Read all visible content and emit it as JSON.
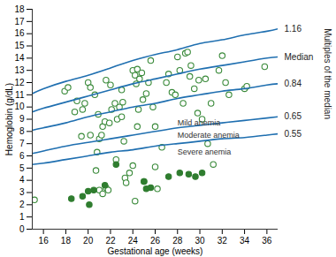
{
  "chart_data": {
    "type": "scatter",
    "x_label": "Gestational age (weeks)",
    "y_label": "Hemoglobin (g/dL)",
    "y2_label": "Multiples of the median",
    "xlim": [
      15,
      37
    ],
    "xticks": [
      16,
      18,
      20,
      22,
      24,
      26,
      28,
      30,
      32,
      34,
      36
    ],
    "ylim": [
      0,
      18
    ],
    "yticks": [
      0,
      1,
      2,
      3,
      4,
      5,
      6,
      7,
      8,
      9,
      10,
      11,
      12,
      13,
      14,
      15,
      16,
      17,
      18
    ],
    "grid": false,
    "annotations": [
      "Mild anemia",
      "Moderate anemia",
      "Severe anemia"
    ],
    "series": [
      {
        "type": "scatter",
        "marker": "open circle",
        "color": "#3a8a3a",
        "x": [
          15.2,
          17.9,
          18.2,
          18.8,
          19.0,
          19.4,
          19.5,
          19.7,
          20.0,
          20.2,
          20.2,
          20.6,
          20.7,
          20.8,
          20.9,
          21.0,
          21.0,
          21.2,
          21.3,
          21.3,
          21.5,
          21.6,
          21.6,
          21.8,
          21.9,
          22.0,
          22.1,
          22.4,
          22.5,
          22.6,
          22.8,
          23.0,
          23.0,
          23.1,
          23.2,
          23.3,
          23.4,
          23.7,
          24.0,
          24.0,
          24.2,
          24.2,
          24.3,
          24.4,
          24.4,
          24.5,
          24.6,
          24.8,
          24.9,
          25.0,
          25.2,
          25.4,
          25.6,
          25.8,
          26.0,
          26.0,
          26.2,
          26.6,
          27.0,
          27.2,
          27.5,
          27.8,
          28.0,
          28.2,
          28.5,
          28.7,
          28.9,
          29.1,
          29.2,
          29.5,
          29.8,
          29.9,
          30.2,
          30.5,
          30.7,
          31.0,
          31.2,
          31.7,
          32.0,
          32.3,
          32.6,
          34.0,
          34.2,
          35.8
        ],
        "values": [
          2.4,
          11.3,
          11.6,
          9.6,
          10.5,
          7.6,
          9.8,
          10.3,
          12.0,
          11.6,
          7.7,
          11.0,
          4.8,
          6.3,
          9.4,
          7.4,
          3.2,
          7.7,
          8.4,
          2.9,
          8.8,
          12.2,
          3.4,
          3.2,
          8.7,
          11.8,
          9.8,
          10.3,
          5.7,
          9.0,
          10.0,
          11.4,
          9.2,
          10.4,
          7.2,
          4.2,
          3.8,
          4.6,
          13.0,
          5.2,
          12.6,
          2.3,
          11.9,
          13.1,
          8.4,
          9.8,
          12.3,
          12.8,
          10.6,
          3.9,
          11.1,
          12.0,
          13.8,
          10.0,
          8.4,
          5.1,
          3.3,
          6.7,
          12.0,
          12.7,
          11.2,
          11.0,
          14.1,
          13.0,
          10.3,
          14.4,
          14.5,
          12.5,
          13.4,
          11.5,
          9.5,
          12.2,
          9.0,
          12.3,
          7.0,
          10.3,
          5.3,
          13.0,
          14.2,
          12.0,
          11.0,
          11.5,
          11.7,
          13.3
        ]
      },
      {
        "type": "scatter",
        "marker": "filled circle",
        "color": "#2f7d2f",
        "x": [
          18.5,
          19.5,
          20.0,
          20.1,
          20.5,
          21.5,
          22.5,
          25.0,
          25.2,
          25.6,
          27.2,
          28.2,
          29.0,
          29.6,
          30.2
        ],
        "values": [
          2.5,
          2.7,
          3.1,
          2.0,
          3.2,
          3.6,
          5.3,
          3.9,
          3.3,
          3.4,
          4.3,
          4.6,
          4.5,
          4.3,
          4.6
        ]
      },
      {
        "type": "line",
        "name": "1.16",
        "color": "#1f6fb0",
        "x": [
          15,
          16,
          18,
          20,
          22,
          24,
          26,
          28,
          30,
          32,
          34,
          36,
          37
        ],
        "values": [
          11.1,
          11.5,
          12.1,
          12.6,
          13.2,
          13.8,
          14.3,
          14.7,
          15.2,
          15.5,
          15.9,
          16.2,
          16.4
        ]
      },
      {
        "type": "line",
        "name": "Median",
        "color": "#1f6fb0",
        "x": [
          15,
          16,
          18,
          20,
          22,
          24,
          26,
          28,
          30,
          32,
          34,
          36,
          37
        ],
        "values": [
          9.6,
          9.9,
          10.4,
          10.9,
          11.4,
          11.9,
          12.3,
          12.7,
          13.1,
          13.4,
          13.7,
          14.0,
          14.1
        ]
      },
      {
        "type": "line",
        "name": "0.84",
        "color": "#1f6fb0",
        "x": [
          15,
          16,
          18,
          20,
          22,
          24,
          26,
          28,
          30,
          32,
          34,
          36,
          37
        ],
        "values": [
          8.1,
          8.3,
          8.7,
          9.2,
          9.6,
          10.0,
          10.3,
          10.7,
          11.0,
          11.3,
          11.5,
          11.8,
          11.9
        ]
      },
      {
        "type": "line",
        "name": "0.65",
        "color": "#1f6fb0",
        "x": [
          15,
          16,
          18,
          20,
          22,
          24,
          26,
          28,
          30,
          32,
          34,
          36,
          37
        ],
        "values": [
          6.2,
          6.4,
          6.8,
          7.1,
          7.4,
          7.7,
          8.0,
          8.3,
          8.5,
          8.7,
          8.9,
          9.1,
          9.2
        ]
      },
      {
        "type": "line",
        "name": "0.55",
        "color": "#1f6fb0",
        "x": [
          15,
          16,
          18,
          20,
          22,
          24,
          26,
          28,
          30,
          32,
          34,
          36,
          37
        ],
        "values": [
          5.3,
          5.4,
          5.7,
          6.0,
          6.3,
          6.5,
          6.8,
          7.0,
          7.2,
          7.4,
          7.5,
          7.7,
          7.8
        ]
      }
    ]
  }
}
